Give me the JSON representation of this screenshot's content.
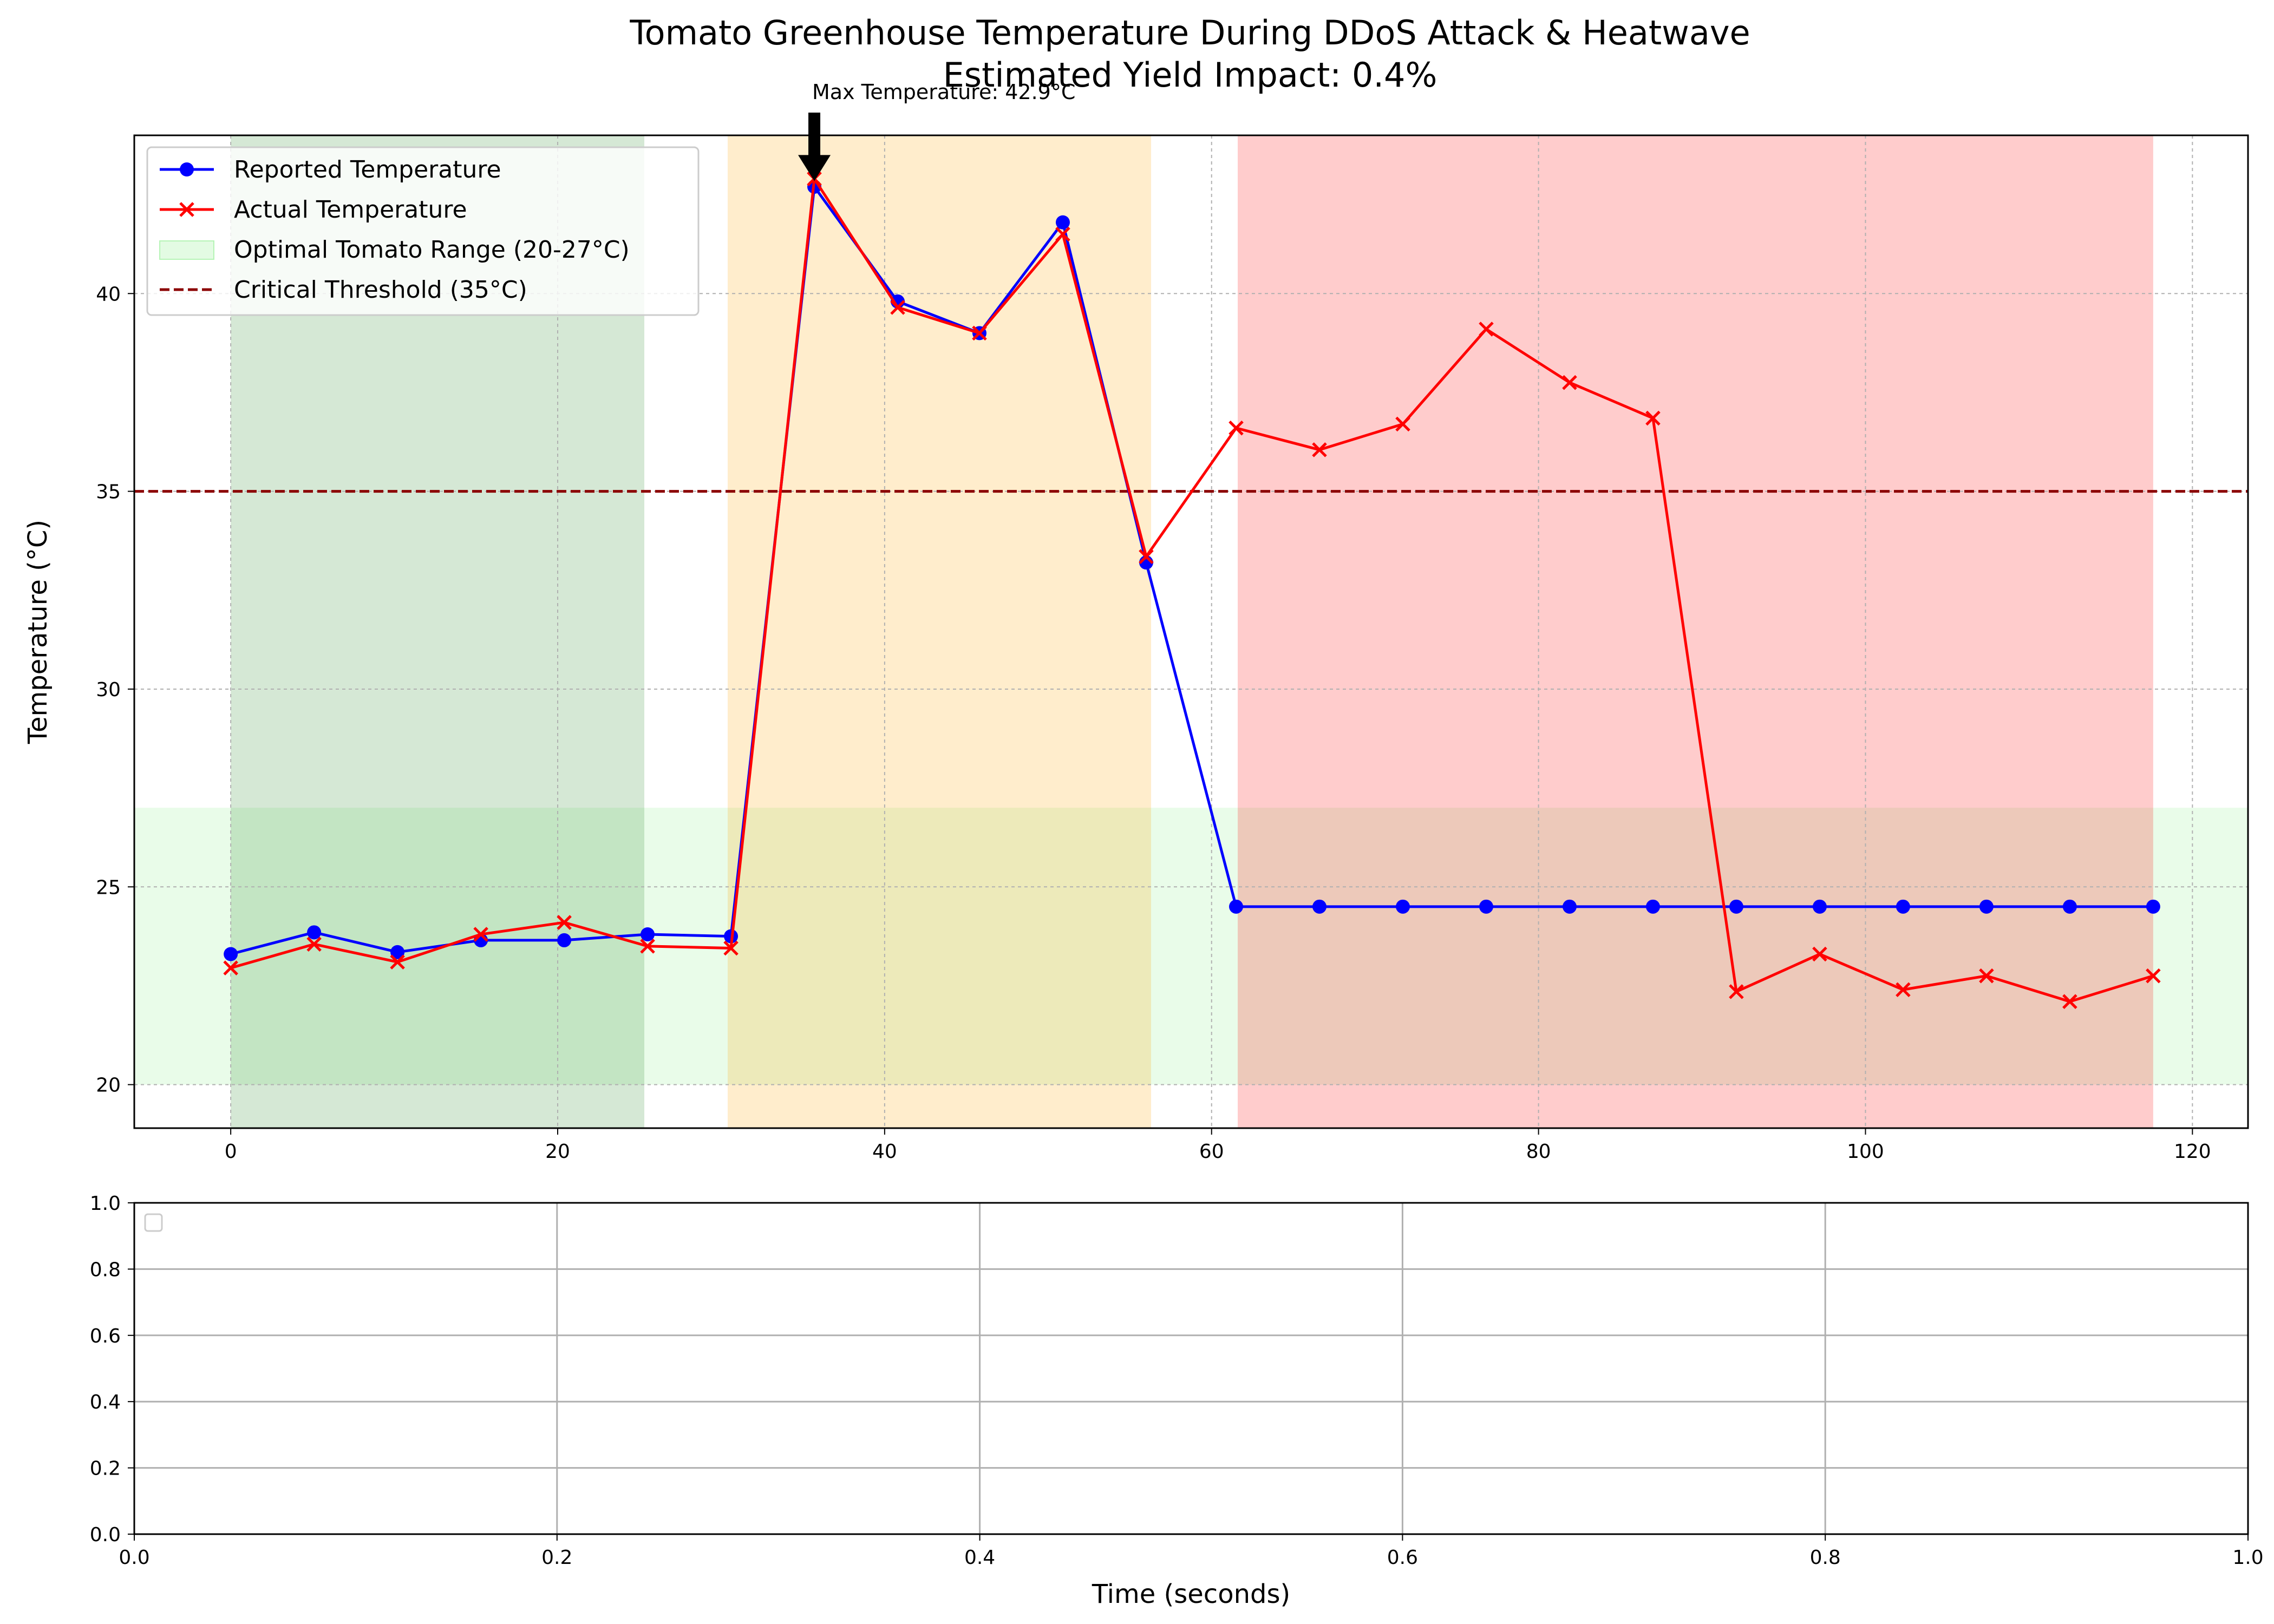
{
  "chart_data": [
    {
      "type": "line",
      "title": "Tomato Greenhouse Temperature During DDoS Attack & Heatwave",
      "subtitle": "Estimated Yield Impact: 0.4%",
      "xlabel": "",
      "ylabel": "Temperature (°C)",
      "xlim": [
        -5.9,
        123.4
      ],
      "ylim": [
        18.9,
        44.0
      ],
      "x_ticks": [
        0,
        20,
        40,
        60,
        80,
        100,
        120
      ],
      "y_ticks": [
        20,
        25,
        30,
        35,
        40
      ],
      "grid": true,
      "legend_position": "upper-left",
      "x": [
        0,
        5.1,
        10.2,
        15.3,
        20.4,
        25.5,
        30.6,
        35.7,
        40.8,
        45.8,
        50.9,
        56.0,
        61.5,
        66.6,
        71.7,
        76.8,
        81.9,
        87.0,
        92.1,
        97.2,
        102.3,
        107.4,
        112.5,
        117.6
      ],
      "series": [
        {
          "name": "Reported Temperature",
          "color": "#0000ff",
          "marker": "circle",
          "values": [
            23.3,
            23.85,
            23.35,
            23.65,
            23.65,
            23.8,
            23.75,
            42.7,
            39.8,
            39.0,
            41.8,
            33.2,
            24.5,
            24.5,
            24.5,
            24.5,
            24.5,
            24.5,
            24.5,
            24.5,
            24.5,
            24.5,
            24.5,
            24.5
          ]
        },
        {
          "name": "Actual Temperature",
          "color": "#ff0000",
          "marker": "x",
          "values": [
            22.95,
            23.55,
            23.1,
            23.8,
            24.1,
            23.5,
            23.45,
            42.9,
            39.65,
            39.0,
            41.5,
            33.35,
            36.6,
            36.05,
            36.7,
            39.1,
            37.75,
            36.85,
            22.35,
            23.3,
            22.4,
            22.75,
            22.1,
            22.75
          ]
        }
      ],
      "bands": [
        {
          "x_start": 0,
          "x_end": 25.3,
          "color": "#2e8b2e",
          "opacity": 0.2
        },
        {
          "x_start": 30.4,
          "x_end": 56.3,
          "color": "#ffa500",
          "opacity": 0.2
        },
        {
          "x_start": 61.6,
          "x_end": 117.6,
          "color": "#ff0000",
          "opacity": 0.2
        }
      ],
      "optimal_range": {
        "name": "Optimal Tomato Range (20-27°C)",
        "low": 20,
        "high": 27,
        "color": "#90ee90",
        "opacity": 0.2
      },
      "threshold": {
        "name": "Critical Threshold (35°C)",
        "value": 35,
        "color": "#8b0000"
      },
      "annotation": {
        "text": "Max Temperature: 42.9°C",
        "x": 35.7,
        "y": 42.9
      }
    },
    {
      "type": "line",
      "title": "",
      "xlabel": "Time (seconds)",
      "ylabel": "",
      "xlim": [
        0,
        1
      ],
      "ylim": [
        0,
        1
      ],
      "x_ticks": [
        "0.0",
        "0.2",
        "0.4",
        "0.6",
        "0.8",
        "1.0"
      ],
      "y_ticks": [
        "0.0",
        "0.2",
        "0.4",
        "0.6",
        "0.8",
        "1.0"
      ],
      "grid": true,
      "series": []
    }
  ]
}
